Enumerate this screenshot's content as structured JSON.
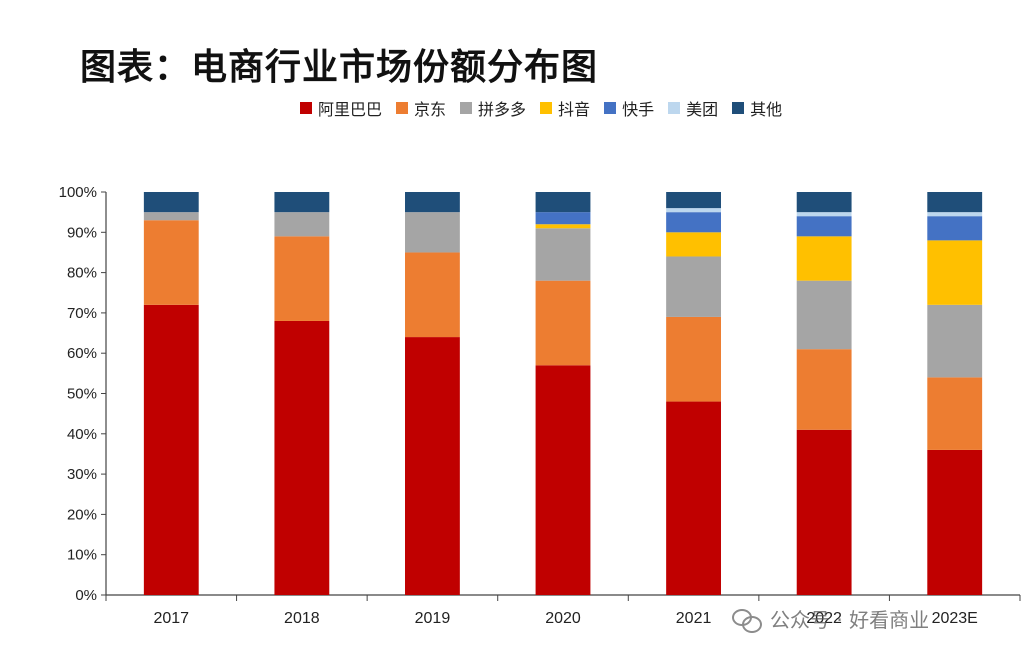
{
  "title": "图表：电商行业市场份额分布图",
  "watermark": "公众号 · 好看商业",
  "chart_data": {
    "type": "bar",
    "stacked": true,
    "categories": [
      "2017",
      "2018",
      "2019",
      "2020",
      "2021",
      "2022",
      "2023E"
    ],
    "y_ticks": [
      "0%",
      "10%",
      "20%",
      "30%",
      "40%",
      "50%",
      "60%",
      "70%",
      "80%",
      "90%",
      "100%"
    ],
    "ylim": [
      0,
      100
    ],
    "legend_position": "top",
    "series": [
      {
        "name": "阿里巴巴",
        "color": "#C00000",
        "values": [
          72,
          68,
          64,
          57,
          48,
          41,
          36
        ]
      },
      {
        "name": "京东",
        "color": "#ED7D31",
        "values": [
          21,
          21,
          21,
          21,
          21,
          20,
          18
        ]
      },
      {
        "name": "拼多多",
        "color": "#A5A5A5",
        "values": [
          2,
          6,
          10,
          13,
          15,
          17,
          18
        ]
      },
      {
        "name": "抖音",
        "color": "#FFC000",
        "values": [
          0,
          0,
          0,
          1,
          6,
          11,
          16
        ]
      },
      {
        "name": "快手",
        "color": "#4472C4",
        "values": [
          0,
          0,
          0,
          3,
          5,
          5,
          6
        ]
      },
      {
        "name": "美团",
        "color": "#BDD7EE",
        "values": [
          0,
          0,
          0,
          0,
          1,
          1,
          1
        ]
      },
      {
        "name": "其他",
        "color": "#1F4E79",
        "values": [
          5,
          5,
          5,
          5,
          4,
          5,
          5
        ]
      }
    ]
  }
}
